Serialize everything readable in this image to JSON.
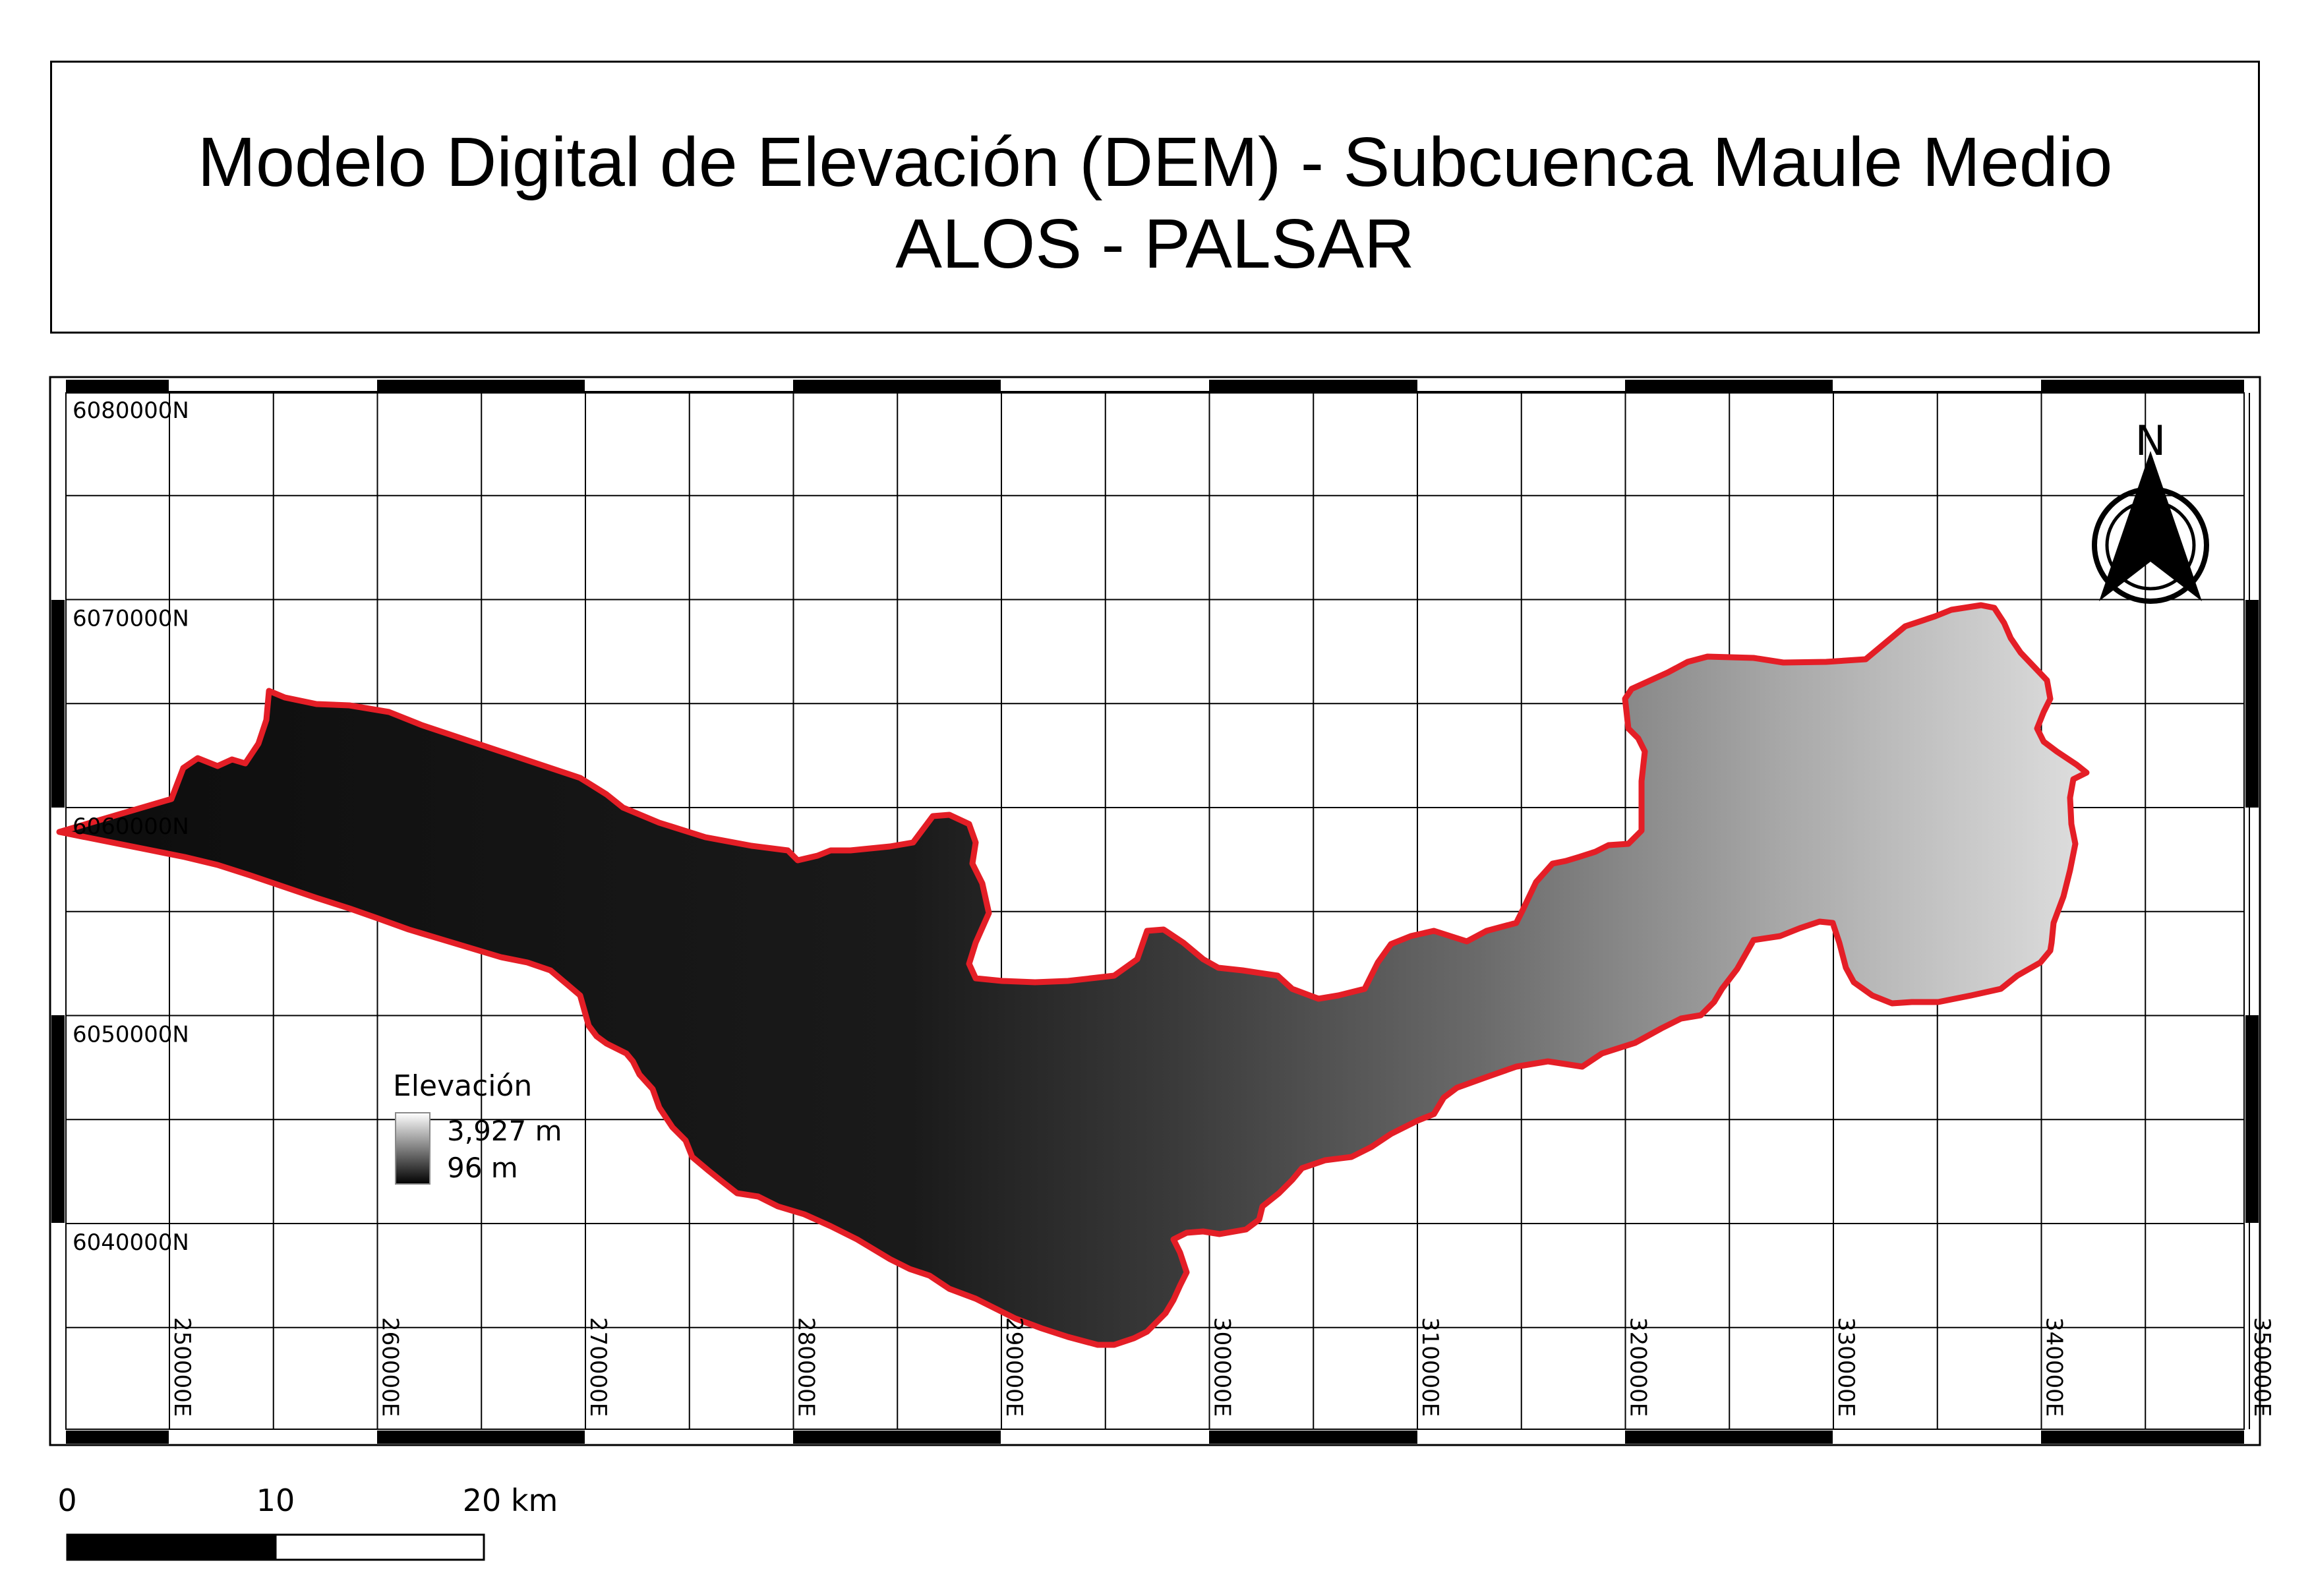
{
  "title": {
    "line1": "Modelo Digital de Elevación (DEM) - Subcuenca Maule Medio",
    "line2": "ALOS - PALSAR"
  },
  "grid": {
    "eastings": [
      "250000E",
      "260000E",
      "270000E",
      "280000E",
      "290000E",
      "300000E",
      "310000E",
      "320000E",
      "330000E",
      "340000E",
      "350000E"
    ],
    "northings": [
      "6080000N",
      "6070000N",
      "6060000N",
      "6050000N",
      "6040000N"
    ]
  },
  "north_arrow": {
    "label": "N"
  },
  "legend": {
    "title": "Elevación",
    "max_label": "3,927 m",
    "min_label": "96 m",
    "ramp_colors": [
      "#ffffff",
      "#000000"
    ]
  },
  "scale_bar": {
    "labels": [
      "0",
      "10",
      "20 km"
    ]
  },
  "colors": {
    "boundary": "#e41e26",
    "grid": "#000000"
  }
}
